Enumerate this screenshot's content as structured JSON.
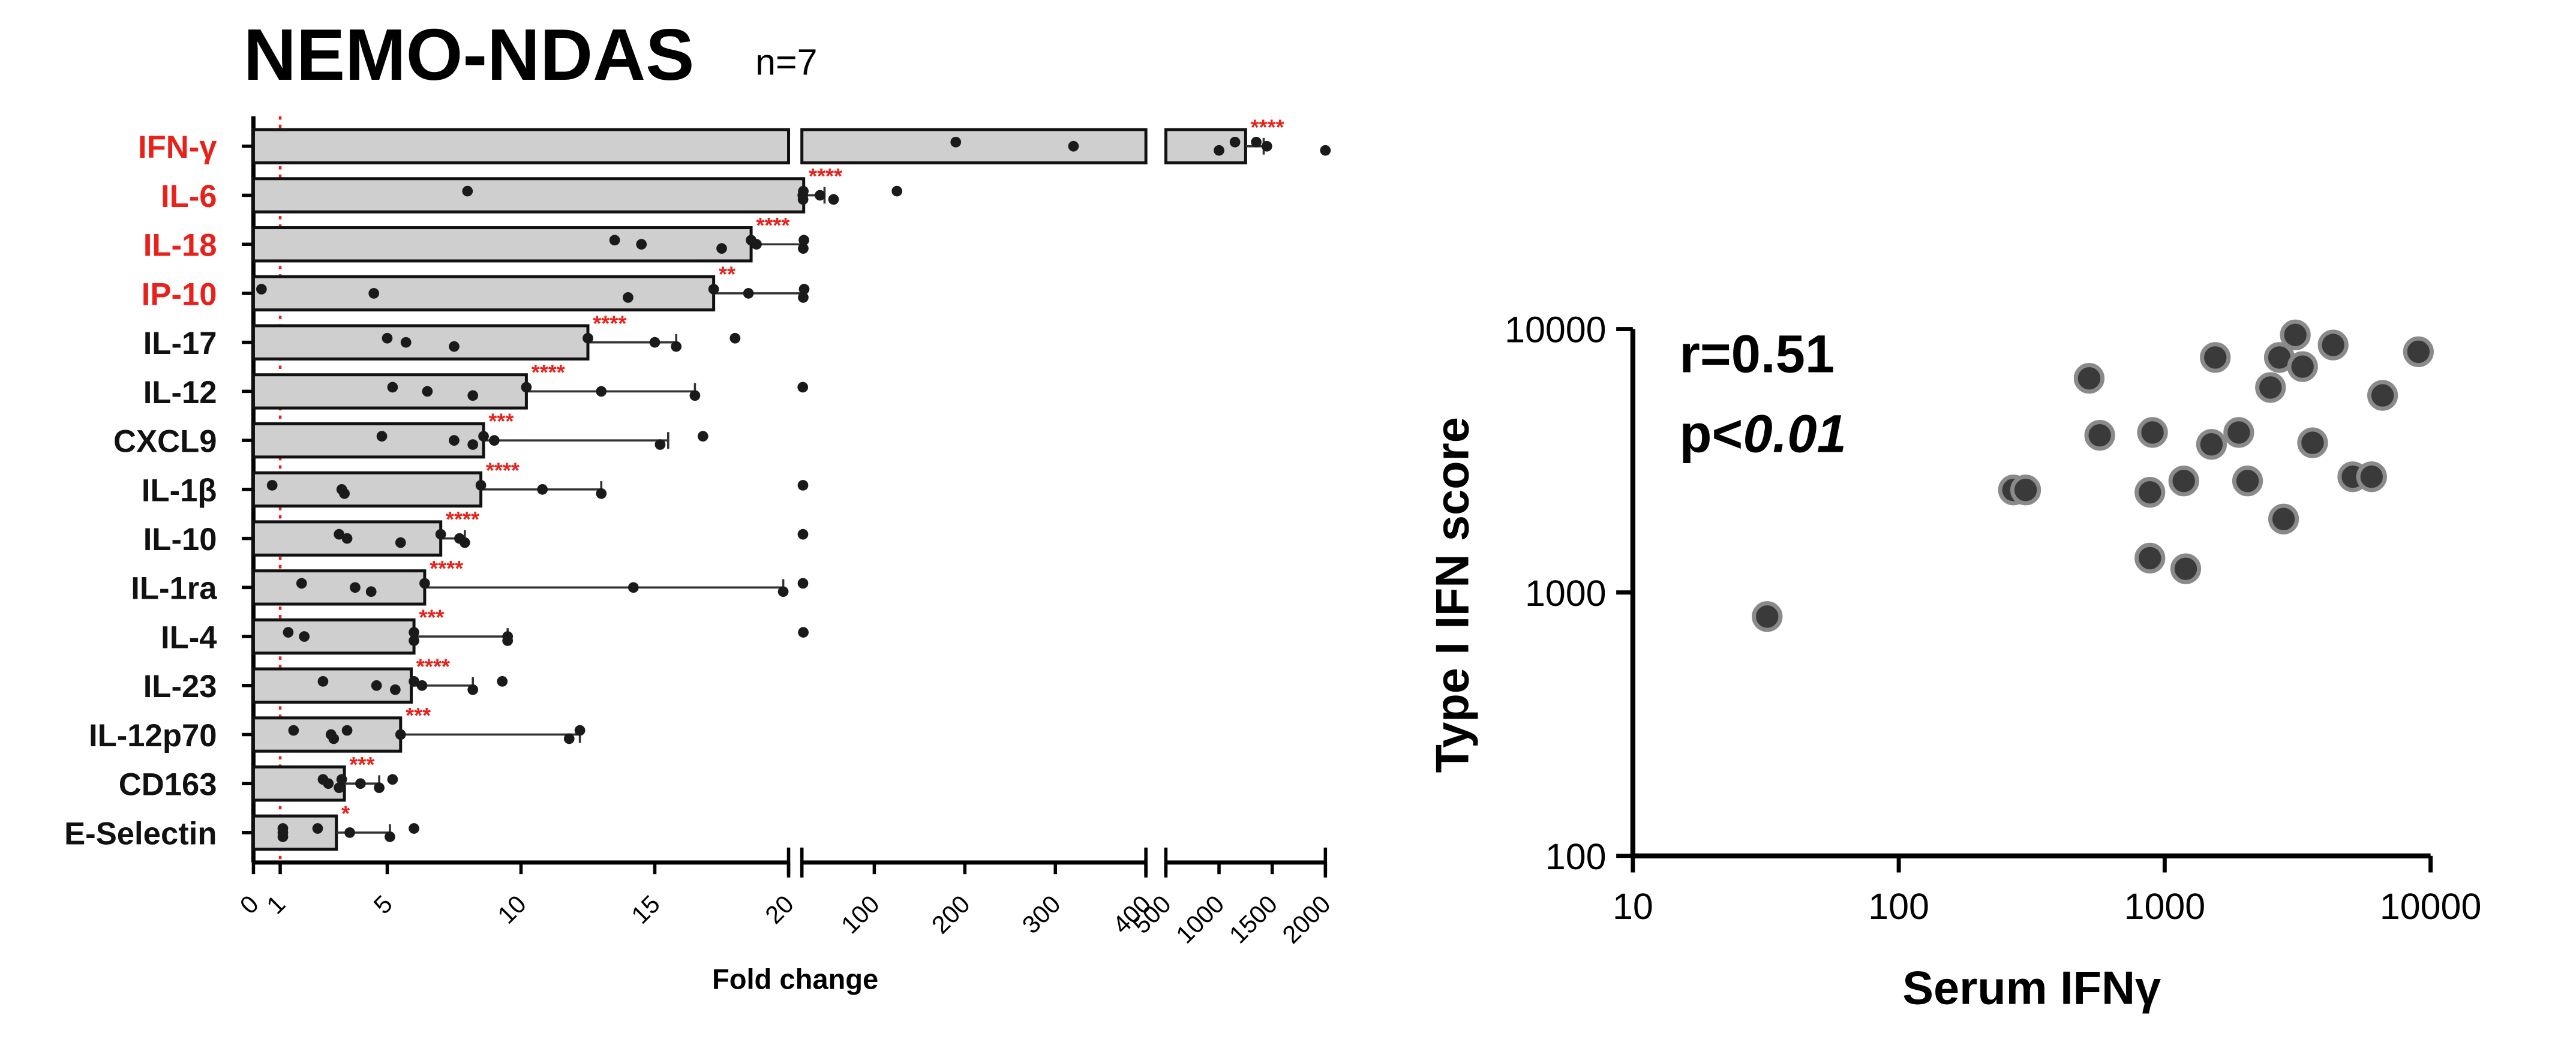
{
  "figure": {
    "title": "NEMO-NDAS",
    "n_label": "n=7"
  },
  "colors": {
    "highlight_label": "#e8211b",
    "normal_label": "#111111",
    "bar_fill": "#cfcfcf",
    "bar_stroke": "#111111",
    "significance": "#e8211b",
    "reference_line": "#e8211b",
    "point": "#1a1a1a",
    "scatter_point": "#3a3a3a",
    "scatter_point_edge": "#8a8a8a"
  },
  "chart_data": [
    {
      "type": "bar",
      "orientation": "horizontal",
      "xlabel": "Fold change",
      "reference_line": 1,
      "x_axis_segments": [
        {
          "range": [
            0,
            20
          ],
          "ticks": [
            "0",
            "1",
            "5",
            "10",
            "15",
            "20"
          ]
        },
        {
          "range": [
            20,
            400
          ],
          "ticks": [
            "100",
            "200",
            "300",
            "400"
          ]
        },
        {
          "range": [
            500,
            2000
          ],
          "ticks": [
            "500",
            "1000",
            "1500",
            "2000"
          ]
        }
      ],
      "categories": [
        "IFN-γ",
        "IL-6",
        "IL-18",
        "IP-10",
        "IL-17",
        "IL-12",
        "CXCL9",
        "IL-1β",
        "IL-10",
        "IL-1ra",
        "IL-4",
        "IL-23",
        "IL-12p70",
        "CD163",
        "E-Selectin"
      ],
      "highlighted": [
        "IFN-γ",
        "IL-6",
        "IL-18",
        "IP-10"
      ],
      "values": [
        1250,
        22,
        18.6,
        17.2,
        12.5,
        10.2,
        8.6,
        8.5,
        7.0,
        6.4,
        6.0,
        5.9,
        5.5,
        3.4,
        3.1
      ],
      "error_upper": [
        1420,
        45,
        22,
        21.5,
        15.8,
        16.5,
        15.5,
        13.0,
        7.9,
        19.8,
        9.5,
        8.2,
        12.2,
        4.7,
        5.1
      ],
      "significance": [
        "****",
        "****",
        "****",
        "**",
        "****",
        "****",
        "***",
        "****",
        "****",
        "****",
        "***",
        "****",
        "***",
        "***",
        "*"
      ],
      "points": [
        [
          190,
          320,
          1000,
          1350,
          1450,
          2000,
          1150
        ],
        [
          8,
          21,
          21.3,
          21.6,
          40,
          55,
          125
        ],
        [
          13.5,
          14.5,
          17.5,
          18.6,
          18.8,
          21.5,
          22.2
        ],
        [
          0.3,
          4.5,
          14,
          17.2,
          18.5,
          21.5,
          22.5
        ],
        [
          5,
          5.7,
          7.5,
          12.5,
          15,
          15.8,
          18
        ],
        [
          5.2,
          6.5,
          8.2,
          10.2,
          13,
          16.5,
          21
        ],
        [
          4.8,
          7.5,
          8.2,
          8.6,
          9,
          15.2,
          16.8
        ],
        [
          0.7,
          3.3,
          3.4,
          8.5,
          10.8,
          13,
          21.2
        ],
        [
          3.2,
          3.5,
          5.5,
          7.0,
          7.7,
          7.9,
          21.2
        ],
        [
          1.8,
          3.8,
          4.4,
          6.4,
          14.2,
          19.8,
          21.2
        ],
        [
          1.3,
          1.9,
          6.0,
          6.0,
          9.5,
          9.5,
          21.6
        ],
        [
          2.6,
          4.6,
          5.3,
          6.0,
          6.3,
          8.2,
          9.3
        ],
        [
          1.5,
          2.9,
          3.0,
          3.5,
          5.5,
          11.8,
          12.2
        ],
        [
          2.6,
          2.8,
          3.2,
          3.3,
          4.0,
          4.7,
          5.2
        ],
        [
          1.1,
          1.1,
          1.1,
          2.4,
          3.6,
          5.1,
          6.0
        ]
      ]
    },
    {
      "type": "scatter",
      "xlabel": "Serum IFNγ",
      "ylabel": "Type I IFN score",
      "x_scale": "log",
      "y_scale": "log",
      "xlim": [
        10,
        10000
      ],
      "ylim": [
        100,
        10000
      ],
      "x_ticks": [
        "10",
        "100",
        "1000",
        "10000"
      ],
      "y_ticks": [
        "100",
        "1000",
        "10000"
      ],
      "annotation_r": "r=0.51",
      "annotation_p_prefix": "p<",
      "annotation_p_value": "0.01",
      "points": [
        {
          "x": 32,
          "y": 810
        },
        {
          "x": 270,
          "y": 2450
        },
        {
          "x": 300,
          "y": 2450
        },
        {
          "x": 520,
          "y": 6500
        },
        {
          "x": 570,
          "y": 3950
        },
        {
          "x": 880,
          "y": 2400
        },
        {
          "x": 900,
          "y": 4050
        },
        {
          "x": 880,
          "y": 1350
        },
        {
          "x": 1200,
          "y": 1230
        },
        {
          "x": 1180,
          "y": 2650
        },
        {
          "x": 1500,
          "y": 3650
        },
        {
          "x": 1550,
          "y": 7800
        },
        {
          "x": 1900,
          "y": 4050
        },
        {
          "x": 2050,
          "y": 2650
        },
        {
          "x": 2500,
          "y": 6000
        },
        {
          "x": 2700,
          "y": 7800
        },
        {
          "x": 2800,
          "y": 1900
        },
        {
          "x": 3100,
          "y": 9500
        },
        {
          "x": 3300,
          "y": 7200
        },
        {
          "x": 3600,
          "y": 3700
        },
        {
          "x": 4300,
          "y": 8700
        },
        {
          "x": 5100,
          "y": 2750
        },
        {
          "x": 6000,
          "y": 2750
        },
        {
          "x": 6600,
          "y": 5600
        },
        {
          "x": 9000,
          "y": 8200
        }
      ]
    }
  ]
}
